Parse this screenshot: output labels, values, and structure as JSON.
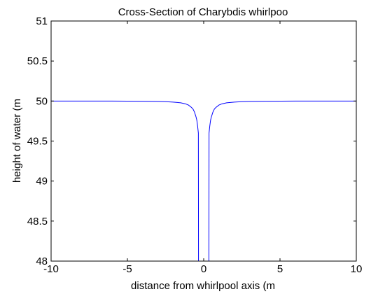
{
  "chart_data": {
    "type": "line",
    "title": "Cross-Section of Charybdis whirlpoo",
    "xlabel": "distance from whirlpool axis (m",
    "ylabel": "height of water (m",
    "xlim": [
      -10,
      10
    ],
    "ylim": [
      48,
      51
    ],
    "xticks": [
      -10,
      -5,
      0,
      5,
      10
    ],
    "xtick_labels": [
      "-10",
      "-5",
      "0",
      "5",
      "10"
    ],
    "yticks": [
      48,
      48.5,
      49,
      49.5,
      50,
      50.5,
      51
    ],
    "ytick_labels": [
      "48",
      "48.5",
      "49",
      "49.5",
      "50",
      "50.5",
      "51"
    ],
    "grid": false,
    "series": [
      {
        "color": "#0000ff",
        "x": [
          -10,
          -8,
          -6,
          -4,
          -3,
          -2.5,
          -2,
          -1.5,
          -1.2,
          -1,
          -0.8,
          -0.7,
          -0.6,
          -0.5,
          -0.45,
          -0.4,
          -0.35,
          -0.34,
          0.34,
          0.35,
          0.4,
          0.45,
          0.5,
          0.6,
          0.7,
          0.8,
          1,
          1.2,
          1.5,
          2,
          2.5,
          3,
          4,
          6,
          8,
          10
        ],
        "y": [
          50,
          50,
          50,
          49.997,
          49.995,
          49.992,
          49.987,
          49.978,
          49.965,
          49.95,
          49.92,
          49.9,
          49.86,
          49.8,
          49.76,
          49.69,
          49.6,
          48,
          48,
          49.6,
          49.69,
          49.76,
          49.8,
          49.86,
          49.9,
          49.92,
          49.95,
          49.965,
          49.978,
          49.987,
          49.992,
          49.995,
          49.997,
          50,
          50,
          50
        ]
      }
    ]
  }
}
